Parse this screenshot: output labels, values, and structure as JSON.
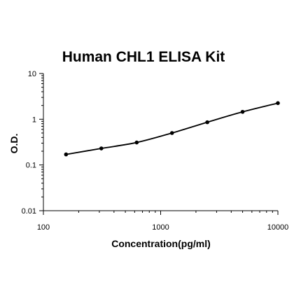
{
  "chart_data": {
    "type": "scatter",
    "title": "Human CHL1 ELISA Kit",
    "xlabel": "Concentration(pg/ml)",
    "ylabel": "O.D.",
    "x_scale": "log",
    "y_scale": "log",
    "xlim": [
      100,
      10000
    ],
    "ylim": [
      0.01,
      10
    ],
    "x_ticks": [
      "100",
      "1000",
      "10000"
    ],
    "y_ticks": [
      "0.01",
      "0.1",
      "1",
      "10"
    ],
    "grid": false,
    "legend": "none",
    "series": [
      {
        "points": [
          {
            "x": 156,
            "y": 0.17
          },
          {
            "x": 312,
            "y": 0.23
          },
          {
            "x": 625,
            "y": 0.31
          },
          {
            "x": 1250,
            "y": 0.5
          },
          {
            "x": 2500,
            "y": 0.86
          },
          {
            "x": 5000,
            "y": 1.45
          },
          {
            "x": 10000,
            "y": 2.25
          }
        ],
        "curve": "fitted",
        "color": "#000000"
      }
    ]
  }
}
